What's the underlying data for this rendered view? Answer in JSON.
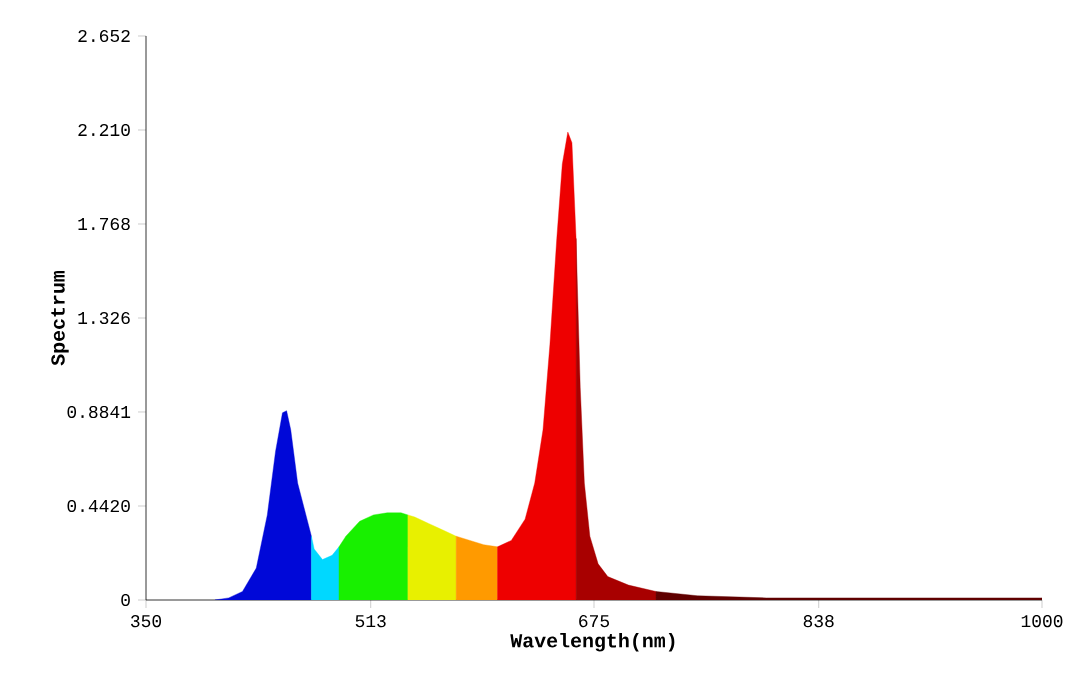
{
  "chart_data": {
    "type": "area",
    "xlabel": "Wavelength(nm)",
    "ylabel": "Spectrum",
    "xlim": [
      350,
      1000
    ],
    "ylim": [
      0,
      2.652
    ],
    "xticks": [
      350,
      513,
      675,
      838,
      1000
    ],
    "yticks": [
      0,
      {
        "value": 0.442,
        "label": "0.4420"
      },
      0.8841,
      1.326,
      1.768,
      {
        "value": 2.21,
        "label": "2.210"
      },
      2.652
    ],
    "series": [
      {
        "color": "#0008d8",
        "x": [
          400,
          410,
          420,
          430,
          438,
          444,
          449,
          452,
          455,
          460,
          466,
          470
        ],
        "values": [
          0,
          0.01,
          0.04,
          0.15,
          0.4,
          0.7,
          0.88,
          0.89,
          0.8,
          0.55,
          0.4,
          0.3
        ]
      },
      {
        "color": "#00d8ff",
        "x": [
          470,
          472,
          478,
          485,
          490
        ],
        "values": [
          0.3,
          0.24,
          0.19,
          0.21,
          0.25
        ]
      },
      {
        "color": "#18f000",
        "x": [
          490,
          495,
          505,
          515,
          525,
          535,
          540
        ],
        "values": [
          0.25,
          0.3,
          0.37,
          0.4,
          0.41,
          0.41,
          0.4
        ]
      },
      {
        "color": "#e8f000",
        "x": [
          540,
          545,
          555,
          565,
          575
        ],
        "values": [
          0.4,
          0.39,
          0.36,
          0.33,
          0.3
        ]
      },
      {
        "color": "#ff9a00",
        "x": [
          575,
          585,
          595,
          605
        ],
        "values": [
          0.3,
          0.28,
          0.26,
          0.25
        ]
      },
      {
        "color": "#ee0000",
        "x": [
          605,
          615,
          625,
          632,
          638,
          643,
          648,
          652,
          656,
          659,
          662
        ],
        "values": [
          0.25,
          0.28,
          0.38,
          0.55,
          0.8,
          1.2,
          1.7,
          2.05,
          2.2,
          2.15,
          1.7
        ]
      },
      {
        "color": "#a80000",
        "x": [
          662,
          665,
          668,
          672,
          678,
          685,
          700,
          720
        ],
        "values": [
          1.7,
          1.0,
          0.55,
          0.3,
          0.17,
          0.11,
          0.07,
          0.04
        ]
      },
      {
        "color": "#600000",
        "x": [
          720,
          750,
          800,
          900,
          1000
        ],
        "values": [
          0.04,
          0.02,
          0.01,
          0.01,
          0.01
        ]
      }
    ]
  }
}
